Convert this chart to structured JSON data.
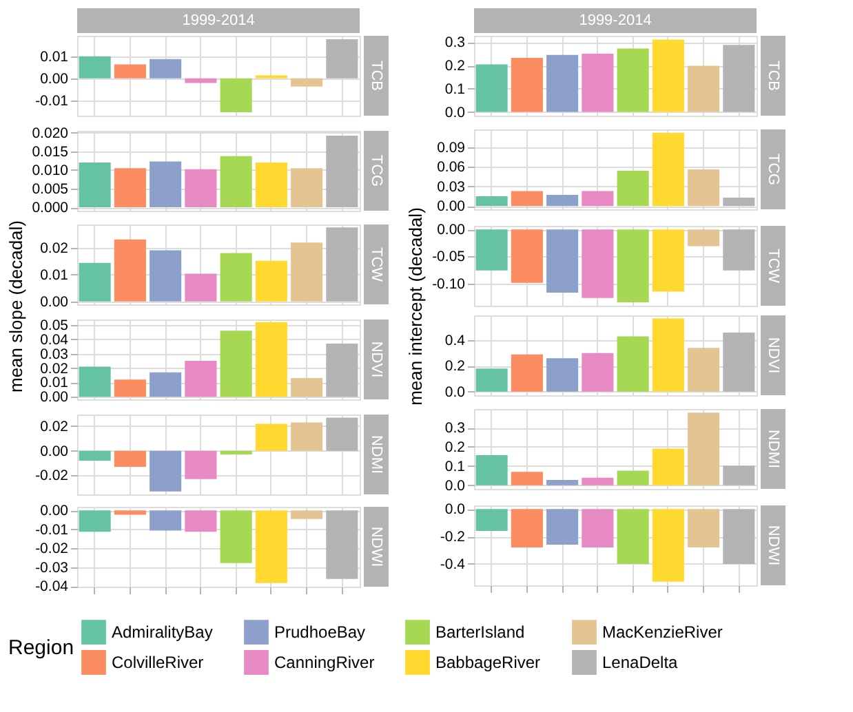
{
  "chart_data": [
    {
      "type": "bar",
      "title": "1999-2014",
      "ylabel": "mean slope (decadal)",
      "y2label": "TCB",
      "categories": [
        null
      ],
      "ylim": [
        -0.017,
        0.0193
      ],
      "yticks": [
        {
          "value": -0.01,
          "label": "-0.01"
        },
        {
          "value": 0,
          "label": "0.00"
        },
        0.01
      ],
      "grid": true,
      "legend": "bottom",
      "legend_title": "Region",
      "series": [
        {
          "name": "AdmiralityBay",
          "color": "#66c2a5",
          "values": [
            0.01
          ]
        },
        {
          "name": "ColvilleRiver",
          "color": "#fc8d62",
          "values": [
            0.0063
          ]
        },
        {
          "name": "PrudhoeBay",
          "color": "#8da0cb",
          "values": [
            0.0087
          ]
        },
        {
          "name": "CanningRiver",
          "color": "#e78ac3",
          "values": [
            -0.0021
          ]
        },
        {
          "name": "BarterIsland",
          "color": "#a6d854",
          "values": [
            -0.0154
          ]
        },
        {
          "name": "BabbageRiver",
          "color": "#ffd92f",
          "values": [
            0.0013
          ]
        },
        {
          "name": "MacKenzieRiver",
          "color": "#e5c494",
          "values": [
            -0.0038
          ]
        },
        {
          "name": "LenaDelta",
          "color": "#b3b3b3",
          "values": [
            0.0177
          ]
        }
      ]
    },
    {
      "type": "bar",
      "title": "1999-2014",
      "ylabel": "mean intercept (decadal)",
      "y2label": "TCB",
      "categories": [
        null
      ],
      "ylim": [
        -0.016,
        0.328
      ],
      "yticks": [
        {
          "value": 0,
          "label": "0.0"
        },
        0.1,
        0.2,
        0.3
      ],
      "grid": true,
      "series": [
        {
          "name": "AdmiralityBay",
          "color": "#66c2a5",
          "values": [
            0.205
          ]
        },
        {
          "name": "ColvilleRiver",
          "color": "#fc8d62",
          "values": [
            0.233
          ]
        },
        {
          "name": "PrudhoeBay",
          "color": "#8da0cb",
          "values": [
            0.246
          ]
        },
        {
          "name": "CanningRiver",
          "color": "#e78ac3",
          "values": [
            0.251
          ]
        },
        {
          "name": "BarterIsland",
          "color": "#a6d854",
          "values": [
            0.273
          ]
        },
        {
          "name": "BabbageRiver",
          "color": "#ffd92f",
          "values": [
            0.312
          ]
        },
        {
          "name": "MacKenzieRiver",
          "color": "#e5c494",
          "values": [
            0.199
          ]
        },
        {
          "name": "LenaDelta",
          "color": "#b3b3b3",
          "values": [
            0.289
          ]
        }
      ]
    },
    {
      "type": "bar",
      "y2label": "TCG",
      "categories": [
        null
      ],
      "ylim": [
        -0.0009,
        0.0205
      ],
      "yticks": [
        {
          "value": 0,
          "label": "0.000"
        },
        0.005,
        {
          "value": 0.01,
          "label": "0.010"
        },
        0.015,
        {
          "value": 0.02,
          "label": "0.020"
        }
      ],
      "grid": true,
      "series": [
        {
          "name": "AdmiralityBay",
          "color": "#66c2a5",
          "values": [
            0.012
          ]
        },
        {
          "name": "ColvilleRiver",
          "color": "#fc8d62",
          "values": [
            0.0105
          ]
        },
        {
          "name": "PrudhoeBay",
          "color": "#8da0cb",
          "values": [
            0.0123
          ]
        },
        {
          "name": "CanningRiver",
          "color": "#e78ac3",
          "values": [
            0.0102
          ]
        },
        {
          "name": "BarterIsland",
          "color": "#a6d854",
          "values": [
            0.0137
          ]
        },
        {
          "name": "BabbageRiver",
          "color": "#ffd92f",
          "values": [
            0.012
          ]
        },
        {
          "name": "MacKenzieRiver",
          "color": "#e5c494",
          "values": [
            0.0105
          ]
        },
        {
          "name": "LenaDelta",
          "color": "#b3b3b3",
          "values": [
            0.0192
          ]
        }
      ]
    },
    {
      "type": "bar",
      "y2label": "TCG",
      "categories": [
        null
      ],
      "ylim": [
        -0.005,
        0.117
      ],
      "yticks": [
        {
          "value": 0,
          "label": "0.00"
        },
        0.03,
        0.06,
        0.09
      ],
      "grid": true,
      "series": [
        {
          "name": "AdmiralityBay",
          "color": "#66c2a5",
          "values": [
            0.015
          ]
        },
        {
          "name": "ColvilleRiver",
          "color": "#fc8d62",
          "values": [
            0.023
          ]
        },
        {
          "name": "PrudhoeBay",
          "color": "#8da0cb",
          "values": [
            0.017
          ]
        },
        {
          "name": "CanningRiver",
          "color": "#e78ac3",
          "values": [
            0.023
          ]
        },
        {
          "name": "BarterIsland",
          "color": "#a6d854",
          "values": [
            0.054
          ]
        },
        {
          "name": "BabbageRiver",
          "color": "#ffd92f",
          "values": [
            0.112
          ]
        },
        {
          "name": "MacKenzieRiver",
          "color": "#e5c494",
          "values": [
            0.056
          ]
        },
        {
          "name": "LenaDelta",
          "color": "#b3b3b3",
          "values": [
            0.013
          ]
        }
      ]
    },
    {
      "type": "bar",
      "y2label": "TCW",
      "categories": [
        null
      ],
      "ylim": [
        -0.0011,
        0.0286
      ],
      "yticks": [
        {
          "value": 0,
          "label": "0.00"
        },
        0.01,
        0.02
      ],
      "grid": true,
      "series": [
        {
          "name": "AdmiralityBay",
          "color": "#66c2a5",
          "values": [
            0.0143
          ]
        },
        {
          "name": "ColvilleRiver",
          "color": "#fc8d62",
          "values": [
            0.023
          ]
        },
        {
          "name": "PrudhoeBay",
          "color": "#8da0cb",
          "values": [
            0.019
          ]
        },
        {
          "name": "CanningRiver",
          "color": "#e78ac3",
          "values": [
            0.0103
          ]
        },
        {
          "name": "BarterIsland",
          "color": "#a6d854",
          "values": [
            0.018
          ]
        },
        {
          "name": "BabbageRiver",
          "color": "#ffd92f",
          "values": [
            0.0151
          ]
        },
        {
          "name": "MacKenzieRiver",
          "color": "#e5c494",
          "values": [
            0.0219
          ]
        },
        {
          "name": "LenaDelta",
          "color": "#b3b3b3",
          "values": [
            0.0275
          ]
        }
      ]
    },
    {
      "type": "bar",
      "y2label": "TCW",
      "categories": [
        null
      ],
      "ylim": [
        -0.1413,
        0.0067
      ],
      "yticks": [
        {
          "value": -0.1,
          "label": "-0.10"
        },
        -0.05,
        {
          "value": 0,
          "label": "0.00"
        }
      ],
      "grid": true,
      "series": [
        {
          "name": "AdmiralityBay",
          "color": "#66c2a5",
          "values": [
            -0.076
          ]
        },
        {
          "name": "ColvilleRiver",
          "color": "#fc8d62",
          "values": [
            -0.099
          ]
        },
        {
          "name": "PrudhoeBay",
          "color": "#8da0cb",
          "values": [
            -0.117
          ]
        },
        {
          "name": "CanningRiver",
          "color": "#e78ac3",
          "values": [
            -0.127
          ]
        },
        {
          "name": "BarterIsland",
          "color": "#a6d854",
          "values": [
            -0.135
          ]
        },
        {
          "name": "BabbageRiver",
          "color": "#ffd92f",
          "values": [
            -0.115
          ]
        },
        {
          "name": "MacKenzieRiver",
          "color": "#e5c494",
          "values": [
            -0.031
          ]
        },
        {
          "name": "LenaDelta",
          "color": "#b3b3b3",
          "values": [
            -0.076
          ]
        }
      ]
    },
    {
      "type": "bar",
      "y2label": "NDVI",
      "categories": [
        null
      ],
      "ylim": [
        -0.0018,
        0.0538
      ],
      "yticks": [
        {
          "value": 0,
          "label": "0.00"
        },
        0.01,
        0.02,
        0.03,
        0.04,
        0.05
      ],
      "grid": true,
      "series": [
        {
          "name": "AdmiralityBay",
          "color": "#66c2a5",
          "values": [
            0.021
          ]
        },
        {
          "name": "ColvilleRiver",
          "color": "#fc8d62",
          "values": [
            0.012
          ]
        },
        {
          "name": "PrudhoeBay",
          "color": "#8da0cb",
          "values": [
            0.017
          ]
        },
        {
          "name": "CanningRiver",
          "color": "#e78ac3",
          "values": [
            0.025
          ]
        },
        {
          "name": "BarterIsland",
          "color": "#a6d854",
          "values": [
            0.046
          ]
        },
        {
          "name": "BabbageRiver",
          "color": "#ffd92f",
          "values": [
            0.052
          ]
        },
        {
          "name": "MacKenzieRiver",
          "color": "#e5c494",
          "values": [
            0.013
          ]
        },
        {
          "name": "LenaDelta",
          "color": "#b3b3b3",
          "values": [
            0.037
          ]
        }
      ]
    },
    {
      "type": "bar",
      "y2label": "NDVI",
      "categories": [
        null
      ],
      "ylim": [
        -0.028,
        0.594
      ],
      "yticks": [
        {
          "value": 0,
          "label": "0.0"
        },
        0.2,
        0.4
      ],
      "grid": true,
      "series": [
        {
          "name": "AdmiralityBay",
          "color": "#66c2a5",
          "values": [
            0.18
          ]
        },
        {
          "name": "ColvilleRiver",
          "color": "#fc8d62",
          "values": [
            0.29
          ]
        },
        {
          "name": "PrudhoeBay",
          "color": "#8da0cb",
          "values": [
            0.26
          ]
        },
        {
          "name": "CanningRiver",
          "color": "#e78ac3",
          "values": [
            0.3
          ]
        },
        {
          "name": "BarterIsland",
          "color": "#a6d854",
          "values": [
            0.43
          ]
        },
        {
          "name": "BabbageRiver",
          "color": "#ffd92f",
          "values": [
            0.57
          ]
        },
        {
          "name": "MacKenzieRiver",
          "color": "#e5c494",
          "values": [
            0.34
          ]
        },
        {
          "name": "LenaDelta",
          "color": "#b3b3b3",
          "values": [
            0.46
          ]
        }
      ]
    },
    {
      "type": "bar",
      "y2label": "NDMI",
      "categories": [
        null
      ],
      "ylim": [
        -0.0354,
        0.0295
      ],
      "yticks": [
        -0.02,
        {
          "value": 0,
          "label": "0.00"
        },
        0.02
      ],
      "grid": true,
      "series": [
        {
          "name": "AdmiralityBay",
          "color": "#66c2a5",
          "values": [
            -0.008
          ]
        },
        {
          "name": "ColvilleRiver",
          "color": "#fc8d62",
          "values": [
            -0.013
          ]
        },
        {
          "name": "PrudhoeBay",
          "color": "#8da0cb",
          "values": [
            -0.033
          ]
        },
        {
          "name": "CanningRiver",
          "color": "#e78ac3",
          "values": [
            -0.023
          ]
        },
        {
          "name": "BarterIsland",
          "color": "#a6d854",
          "values": [
            -0.003
          ]
        },
        {
          "name": "BabbageRiver",
          "color": "#ffd92f",
          "values": [
            0.022
          ]
        },
        {
          "name": "MacKenzieRiver",
          "color": "#e5c494",
          "values": [
            0.023
          ]
        },
        {
          "name": "LenaDelta",
          "color": "#b3b3b3",
          "values": [
            0.027
          ]
        }
      ]
    },
    {
      "type": "bar",
      "y2label": "NDMI",
      "categories": [
        null
      ],
      "ylim": [
        -0.019,
        0.397
      ],
      "yticks": [
        {
          "value": 0,
          "label": "0.0"
        },
        0.1,
        0.2,
        0.3
      ],
      "grid": true,
      "series": [
        {
          "name": "AdmiralityBay",
          "color": "#66c2a5",
          "values": [
            0.157
          ]
        },
        {
          "name": "ColvilleRiver",
          "color": "#fc8d62",
          "values": [
            0.07
          ]
        },
        {
          "name": "PrudhoeBay",
          "color": "#8da0cb",
          "values": [
            0.028
          ]
        },
        {
          "name": "CanningRiver",
          "color": "#e78ac3",
          "values": [
            0.039
          ]
        },
        {
          "name": "BarterIsland",
          "color": "#a6d854",
          "values": [
            0.076
          ]
        },
        {
          "name": "BabbageRiver",
          "color": "#ffd92f",
          "values": [
            0.191
          ]
        },
        {
          "name": "MacKenzieRiver",
          "color": "#e5c494",
          "values": [
            0.378
          ]
        },
        {
          "name": "LenaDelta",
          "color": "#b3b3b3",
          "values": [
            0.102
          ]
        }
      ]
    },
    {
      "type": "bar",
      "y2label": "NDWI",
      "categories": [
        null
      ],
      "ylim": [
        -0.0402,
        0.0019
      ],
      "yticks": [
        -0.04,
        -0.03,
        -0.02,
        -0.01,
        {
          "value": 0,
          "label": "0.00"
        }
      ],
      "grid": true,
      "series": [
        {
          "name": "AdmiralityBay",
          "color": "#66c2a5",
          "values": [
            -0.0113
          ]
        },
        {
          "name": "ColvilleRiver",
          "color": "#fc8d62",
          "values": [
            -0.0023
          ]
        },
        {
          "name": "PrudhoeBay",
          "color": "#8da0cb",
          "values": [
            -0.0106
          ]
        },
        {
          "name": "CanningRiver",
          "color": "#e78ac3",
          "values": [
            -0.0113
          ]
        },
        {
          "name": "BarterIsland",
          "color": "#a6d854",
          "values": [
            -0.0278
          ]
        },
        {
          "name": "BabbageRiver",
          "color": "#ffd92f",
          "values": [
            -0.0383
          ]
        },
        {
          "name": "MacKenzieRiver",
          "color": "#e5c494",
          "values": [
            -0.0045
          ]
        },
        {
          "name": "LenaDelta",
          "color": "#b3b3b3",
          "values": [
            -0.0361
          ]
        }
      ]
    },
    {
      "type": "bar",
      "y2label": "NDWI",
      "categories": [
        null
      ],
      "ylim": [
        -0.556,
        0.026
      ],
      "yticks": [
        -0.4,
        -0.2,
        {
          "value": 0,
          "label": "0.0"
        }
      ],
      "grid": true,
      "series": [
        {
          "name": "AdmiralityBay",
          "color": "#66c2a5",
          "values": [
            -0.16
          ]
        },
        {
          "name": "ColvilleRiver",
          "color": "#fc8d62",
          "values": [
            -0.28
          ]
        },
        {
          "name": "PrudhoeBay",
          "color": "#8da0cb",
          "values": [
            -0.26
          ]
        },
        {
          "name": "CanningRiver",
          "color": "#e78ac3",
          "values": [
            -0.28
          ]
        },
        {
          "name": "BarterIsland",
          "color": "#a6d854",
          "values": [
            -0.4
          ]
        },
        {
          "name": "BabbageRiver",
          "color": "#ffd92f",
          "values": [
            -0.53
          ]
        },
        {
          "name": "MacKenzieRiver",
          "color": "#e5c494",
          "values": [
            -0.28
          ]
        },
        {
          "name": "LenaDelta",
          "color": "#b3b3b3",
          "values": [
            -0.4
          ]
        }
      ]
    }
  ]
}
